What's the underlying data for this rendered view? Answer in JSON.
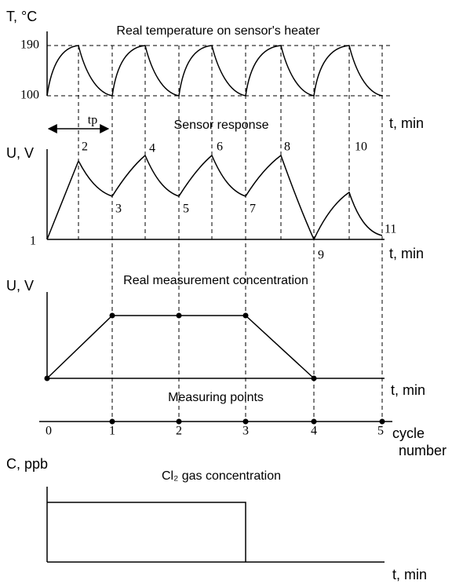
{
  "temperature_panel": {
    "title": "Real temperature on sensor's heater",
    "y_label": "T, °C",
    "ticks": [
      "190",
      "100"
    ],
    "x_label": "t, min",
    "period_label": "tp"
  },
  "response_panel": {
    "title": "Sensor response",
    "y_label": "U, V",
    "points": [
      "1",
      "2",
      "3",
      "4",
      "5",
      "6",
      "7",
      "8",
      "9",
      "10",
      "11"
    ],
    "x_label": "t, min"
  },
  "concentration_panel": {
    "title": "Real measurement concentration",
    "y_label": "U, V",
    "x_label": "t, min"
  },
  "measuring_panel": {
    "title": "Measuring points",
    "ticks": [
      "0",
      "1",
      "2",
      "3",
      "4",
      "5"
    ],
    "x_label": [
      "cycle",
      "number"
    ]
  },
  "gas_panel": {
    "title": "Cl₂ gas concentration",
    "y_label": "C, ppb",
    "x_label": "t, min"
  }
}
